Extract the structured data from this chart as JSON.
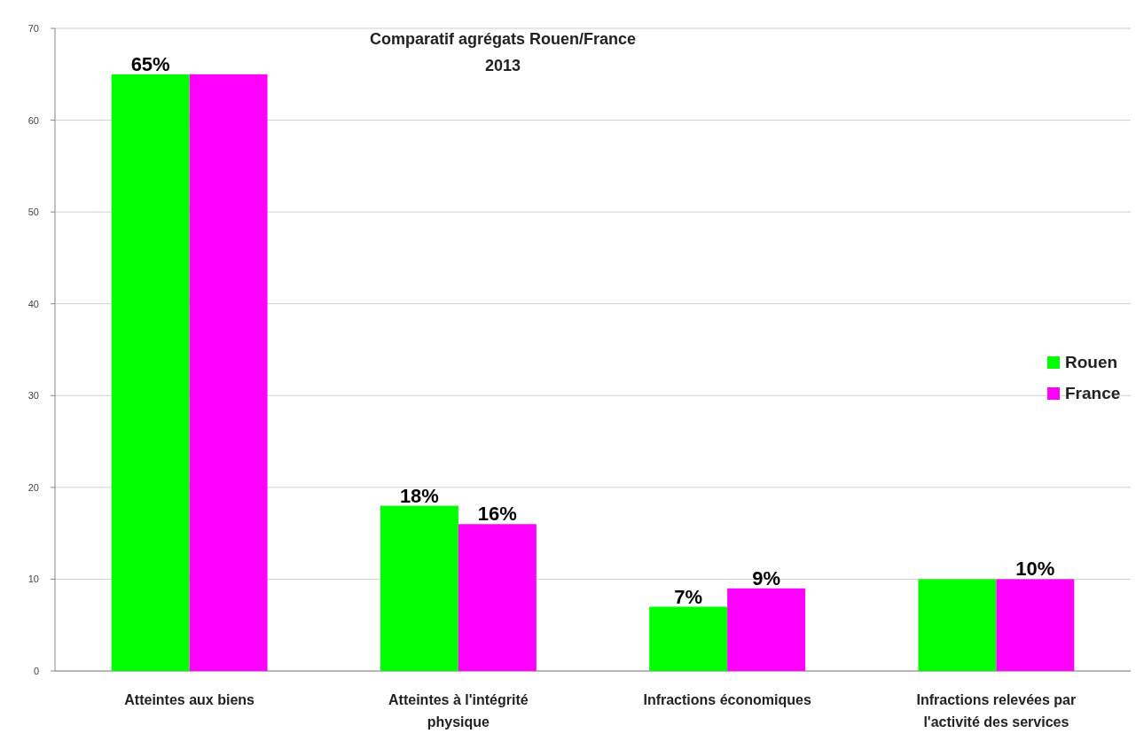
{
  "chart_data": {
    "type": "bar",
    "title": "Comparatif agrégats Rouen/France",
    "subtitle": "2013",
    "categories": [
      "Atteintes aux biens",
      "Atteintes à l'intégrité physique",
      "Infractions économiques",
      "Infractions relevées par l'activité des services"
    ],
    "series": [
      {
        "name": "Rouen",
        "color": "#00ff00",
        "values": [
          65,
          18,
          7,
          10
        ],
        "value_labels": [
          "65%",
          "18%",
          "7%",
          null
        ]
      },
      {
        "name": "France",
        "color": "#ff00ff",
        "values": [
          65,
          16,
          9,
          10
        ],
        "value_labels": [
          null,
          "16%",
          "9%",
          "10%"
        ]
      }
    ],
    "ylim": [
      0,
      70
    ],
    "yticks": [
      0,
      10,
      20,
      30,
      40,
      50,
      60,
      70
    ],
    "grid": "y",
    "legend": "right"
  }
}
